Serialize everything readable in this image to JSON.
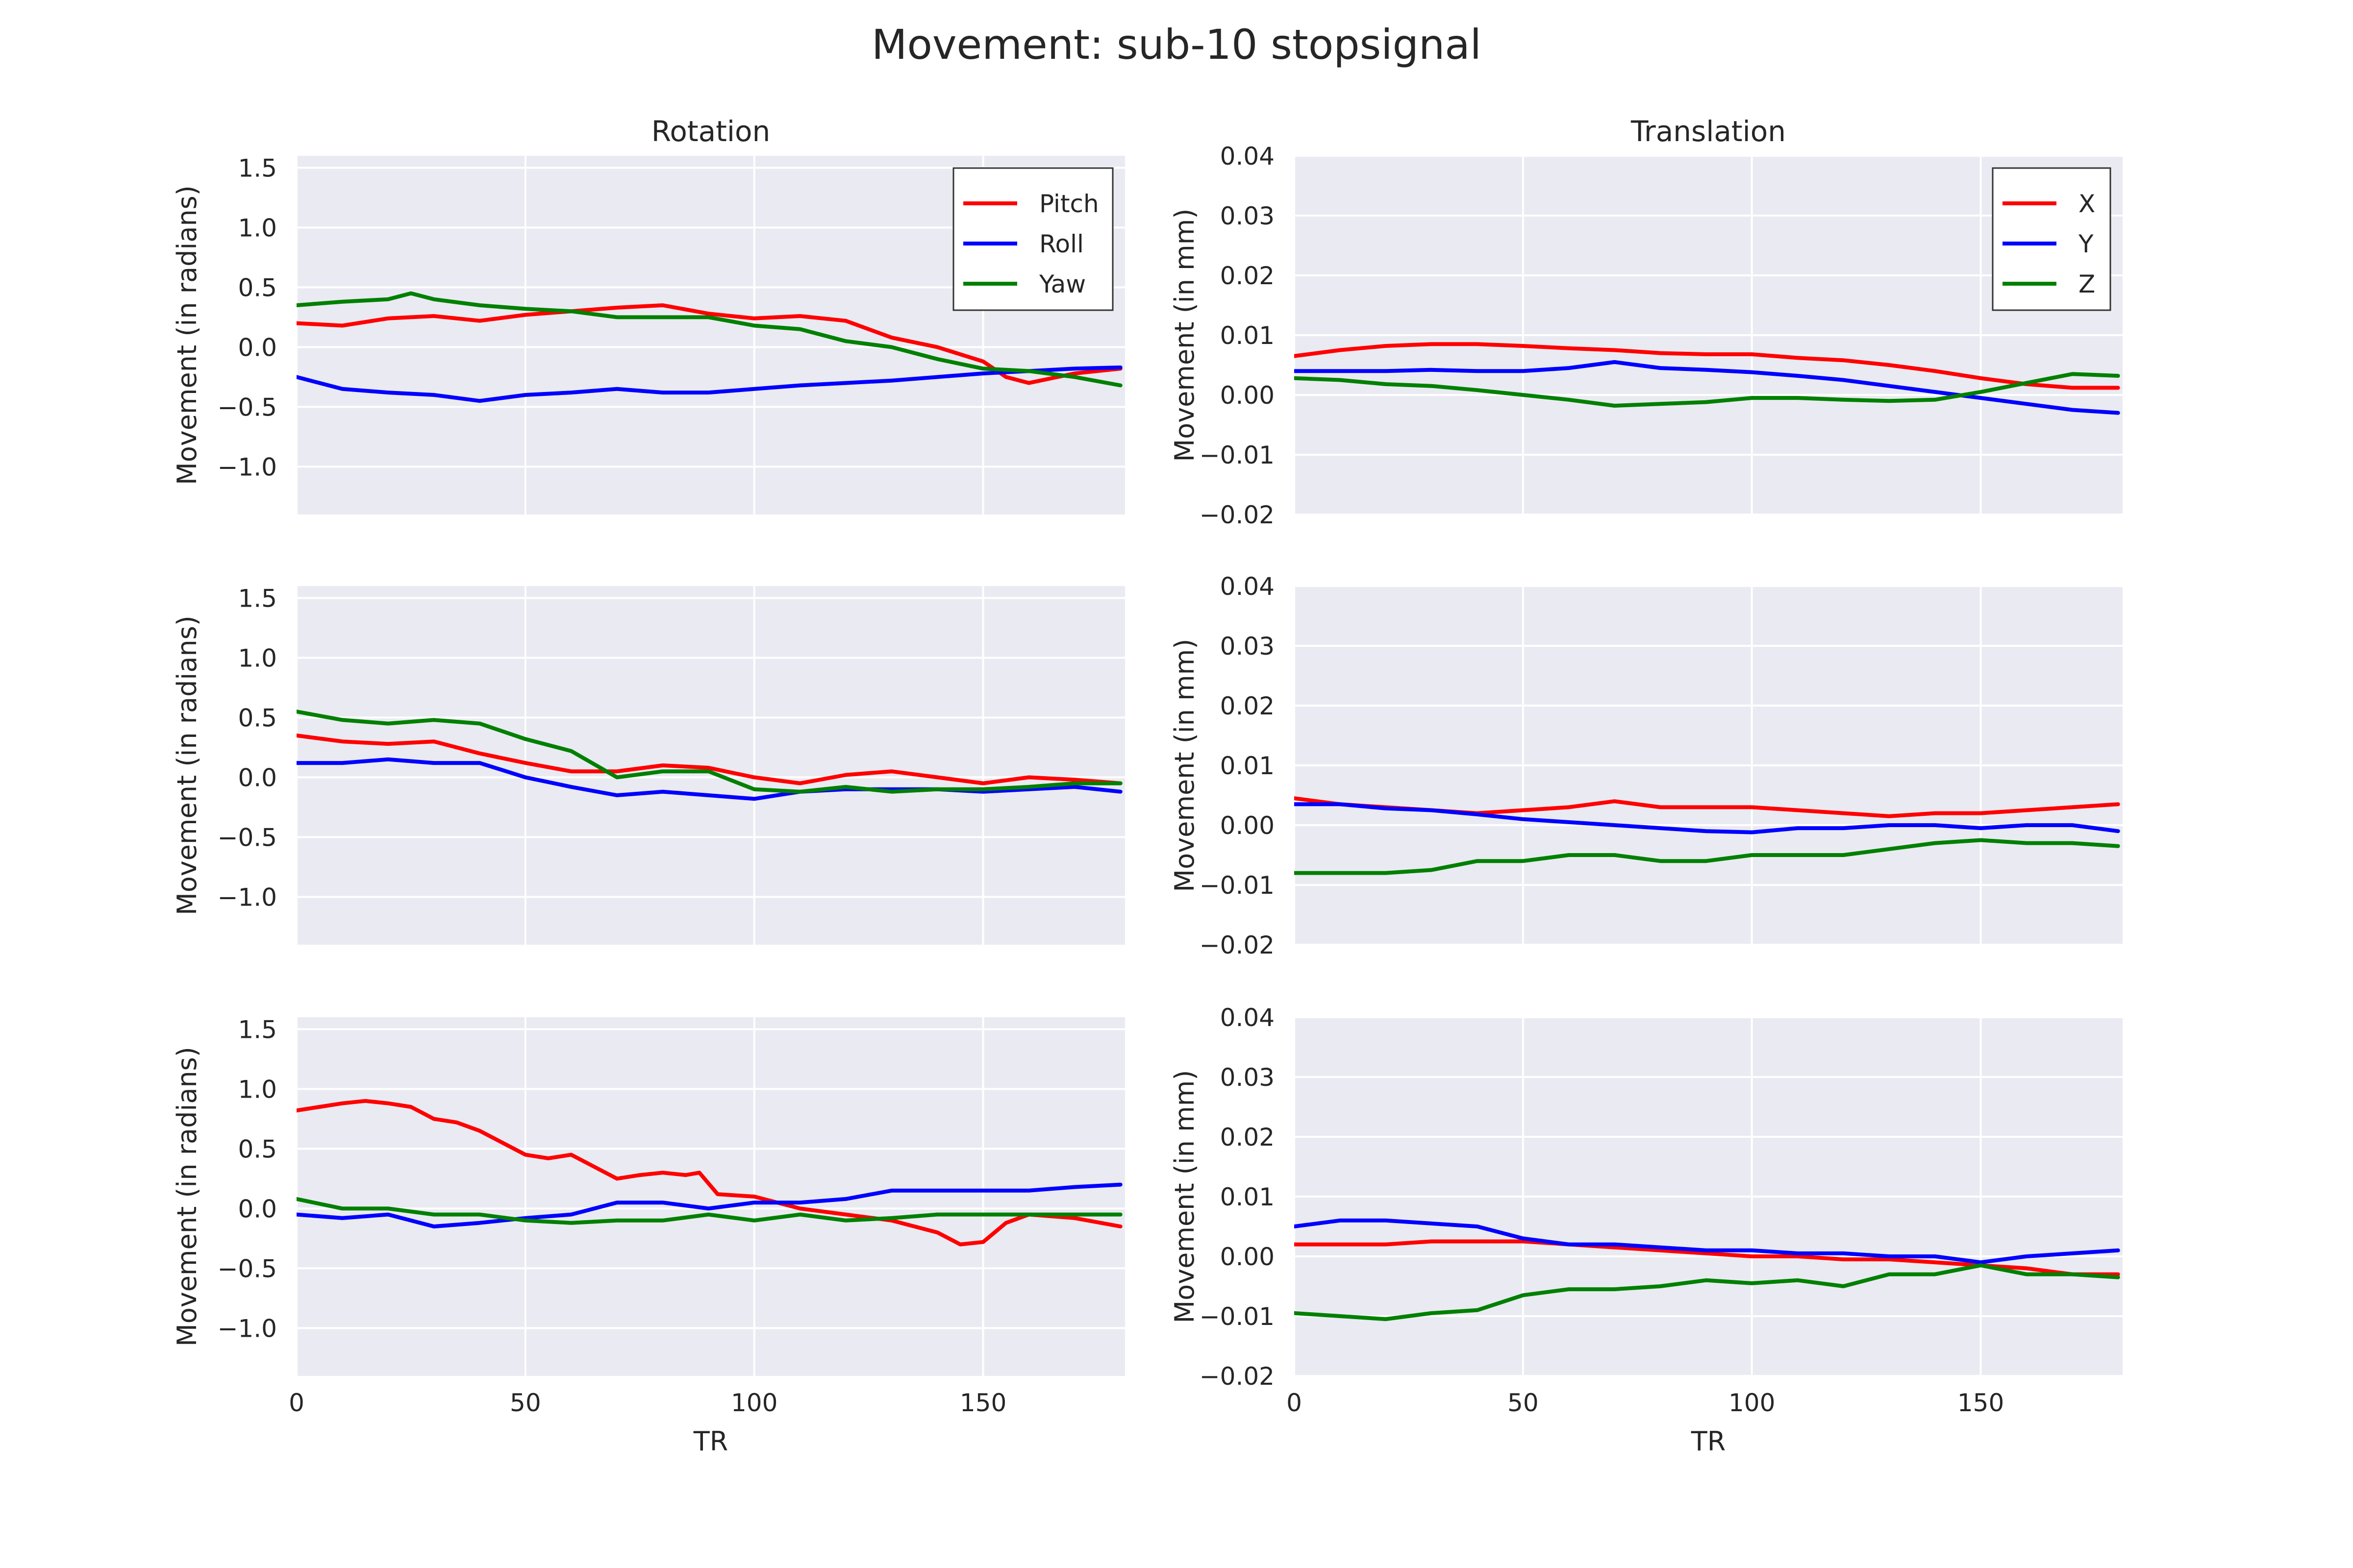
{
  "figure": {
    "title": "Movement: sub-10 stopsignal",
    "xlabel": "TR"
  },
  "colors": {
    "background": "#EAEAF2",
    "grid": "#FFFFFF",
    "red": "#FF0000",
    "blue": "#0000FF",
    "green": "#008000"
  },
  "chart_data": [
    {
      "type": "line",
      "row": 1,
      "col": 1,
      "title": "Rotation",
      "xlabel": "",
      "ylabel": "Movement (in radians)",
      "xlim": [
        0,
        181
      ],
      "ylim": [
        -1.4,
        1.6
      ],
      "xticks": [
        0,
        50,
        100,
        150
      ],
      "xticklabels": [
        "0",
        "50",
        "100",
        "150"
      ],
      "yticks": [
        -1.0,
        -0.5,
        0.0,
        0.5,
        1.0,
        1.5
      ],
      "yticklabels": [
        "−1.0",
        "−0.5",
        "0.0",
        "0.5",
        "1.0",
        "1.5"
      ],
      "grid": true,
      "legend": "top-right",
      "series": [
        {
          "name": "Pitch",
          "color": "#FF0000",
          "x": [
            0,
            10,
            20,
            30,
            40,
            50,
            60,
            70,
            80,
            90,
            100,
            110,
            120,
            130,
            140,
            150,
            155,
            160,
            170,
            180
          ],
          "y": [
            0.2,
            0.18,
            0.24,
            0.26,
            0.22,
            0.27,
            0.3,
            0.33,
            0.35,
            0.28,
            0.24,
            0.26,
            0.22,
            0.08,
            0.0,
            -0.12,
            -0.25,
            -0.3,
            -0.22,
            -0.18
          ]
        },
        {
          "name": "Roll",
          "color": "#0000FF",
          "x": [
            0,
            10,
            20,
            30,
            40,
            50,
            60,
            70,
            80,
            90,
            100,
            110,
            120,
            130,
            140,
            150,
            160,
            170,
            180
          ],
          "y": [
            -0.25,
            -0.35,
            -0.38,
            -0.4,
            -0.45,
            -0.4,
            -0.38,
            -0.35,
            -0.38,
            -0.38,
            -0.35,
            -0.32,
            -0.3,
            -0.28,
            -0.25,
            -0.22,
            -0.2,
            -0.18,
            -0.17
          ]
        },
        {
          "name": "Yaw",
          "color": "#008000",
          "x": [
            0,
            10,
            20,
            25,
            30,
            40,
            50,
            60,
            70,
            80,
            90,
            100,
            110,
            120,
            130,
            140,
            150,
            160,
            170,
            180
          ],
          "y": [
            0.35,
            0.38,
            0.4,
            0.45,
            0.4,
            0.35,
            0.32,
            0.3,
            0.25,
            0.25,
            0.25,
            0.18,
            0.15,
            0.05,
            0.0,
            -0.1,
            -0.18,
            -0.2,
            -0.25,
            -0.32
          ]
        }
      ]
    },
    {
      "type": "line",
      "row": 1,
      "col": 2,
      "title": "Translation",
      "xlabel": "",
      "ylabel": "Movement (in mm)",
      "xlim": [
        0,
        181
      ],
      "ylim": [
        -0.02,
        0.04
      ],
      "xticks": [
        0,
        50,
        100,
        150
      ],
      "xticklabels": [
        "0",
        "50",
        "100",
        "150"
      ],
      "yticks": [
        -0.02,
        -0.01,
        0.0,
        0.01,
        0.02,
        0.03,
        0.04
      ],
      "yticklabels": [
        "−0.02",
        "−0.01",
        "0.00",
        "0.01",
        "0.02",
        "0.03",
        "0.04"
      ],
      "grid": true,
      "legend": "top-right",
      "series": [
        {
          "name": "X",
          "color": "#FF0000",
          "x": [
            0,
            10,
            20,
            30,
            40,
            50,
            60,
            70,
            80,
            90,
            100,
            110,
            120,
            130,
            140,
            150,
            160,
            170,
            180
          ],
          "y": [
            0.0065,
            0.0075,
            0.0082,
            0.0085,
            0.0085,
            0.0082,
            0.0078,
            0.0075,
            0.007,
            0.0068,
            0.0068,
            0.0062,
            0.0058,
            0.005,
            0.004,
            0.0028,
            0.0018,
            0.0012,
            0.0012
          ]
        },
        {
          "name": "Y",
          "color": "#0000FF",
          "x": [
            0,
            10,
            20,
            30,
            40,
            50,
            60,
            70,
            80,
            90,
            100,
            110,
            120,
            130,
            140,
            150,
            160,
            170,
            180
          ],
          "y": [
            0.004,
            0.004,
            0.004,
            0.0042,
            0.004,
            0.004,
            0.0045,
            0.0055,
            0.0045,
            0.0042,
            0.0038,
            0.0032,
            0.0025,
            0.0015,
            0.0005,
            -0.0005,
            -0.0015,
            -0.0025,
            -0.003
          ]
        },
        {
          "name": "Z",
          "color": "#008000",
          "x": [
            0,
            10,
            20,
            30,
            40,
            50,
            60,
            70,
            80,
            90,
            100,
            110,
            120,
            130,
            140,
            150,
            160,
            170,
            180
          ],
          "y": [
            0.0028,
            0.0025,
            0.0018,
            0.0015,
            0.0008,
            0.0,
            -0.0008,
            -0.0018,
            -0.0015,
            -0.0012,
            -0.0005,
            -0.0005,
            -0.0008,
            -0.001,
            -0.0008,
            0.0005,
            0.002,
            0.0035,
            0.0032
          ]
        }
      ]
    },
    {
      "type": "line",
      "row": 2,
      "col": 1,
      "title": "",
      "xlabel": "",
      "ylabel": "Movement (in radians)",
      "xlim": [
        0,
        181
      ],
      "ylim": [
        -1.4,
        1.6
      ],
      "xticks": [
        0,
        50,
        100,
        150
      ],
      "xticklabels": [
        "0",
        "50",
        "100",
        "150"
      ],
      "yticks": [
        -1.0,
        -0.5,
        0.0,
        0.5,
        1.0,
        1.5
      ],
      "yticklabels": [
        "−1.0",
        "−0.5",
        "0.0",
        "0.5",
        "1.0",
        "1.5"
      ],
      "grid": true,
      "legend": "none",
      "series": [
        {
          "name": "Pitch",
          "color": "#FF0000",
          "x": [
            0,
            10,
            20,
            30,
            40,
            50,
            60,
            70,
            80,
            90,
            100,
            110,
            120,
            130,
            140,
            150,
            160,
            170,
            180
          ],
          "y": [
            0.35,
            0.3,
            0.28,
            0.3,
            0.2,
            0.12,
            0.05,
            0.05,
            0.1,
            0.08,
            0.0,
            -0.05,
            0.02,
            0.05,
            0.0,
            -0.05,
            0.0,
            -0.02,
            -0.05
          ]
        },
        {
          "name": "Roll",
          "color": "#0000FF",
          "x": [
            0,
            10,
            20,
            30,
            40,
            50,
            60,
            70,
            80,
            90,
            100,
            110,
            120,
            130,
            140,
            150,
            160,
            170,
            180
          ],
          "y": [
            0.12,
            0.12,
            0.15,
            0.12,
            0.12,
            0.0,
            -0.08,
            -0.15,
            -0.12,
            -0.15,
            -0.18,
            -0.12,
            -0.1,
            -0.1,
            -0.1,
            -0.12,
            -0.1,
            -0.08,
            -0.12
          ]
        },
        {
          "name": "Yaw",
          "color": "#008000",
          "x": [
            0,
            10,
            20,
            30,
            40,
            50,
            60,
            70,
            80,
            90,
            100,
            110,
            120,
            130,
            140,
            150,
            160,
            170,
            180
          ],
          "y": [
            0.55,
            0.48,
            0.45,
            0.48,
            0.45,
            0.32,
            0.22,
            0.0,
            0.05,
            0.05,
            -0.1,
            -0.12,
            -0.08,
            -0.12,
            -0.1,
            -0.1,
            -0.08,
            -0.05,
            -0.05
          ]
        }
      ]
    },
    {
      "type": "line",
      "row": 2,
      "col": 2,
      "title": "",
      "xlabel": "",
      "ylabel": "Movement (in mm)",
      "xlim": [
        0,
        181
      ],
      "ylim": [
        -0.02,
        0.04
      ],
      "xticks": [
        0,
        50,
        100,
        150
      ],
      "xticklabels": [
        "0",
        "50",
        "100",
        "150"
      ],
      "yticks": [
        -0.02,
        -0.01,
        0.0,
        0.01,
        0.02,
        0.03,
        0.04
      ],
      "yticklabels": [
        "−0.02",
        "−0.01",
        "0.00",
        "0.01",
        "0.02",
        "0.03",
        "0.04"
      ],
      "grid": true,
      "legend": "none",
      "series": [
        {
          "name": "X",
          "color": "#FF0000",
          "x": [
            0,
            10,
            20,
            30,
            40,
            50,
            60,
            70,
            80,
            90,
            100,
            110,
            120,
            130,
            140,
            150,
            160,
            170,
            180
          ],
          "y": [
            0.0045,
            0.0035,
            0.003,
            0.0025,
            0.002,
            0.0025,
            0.003,
            0.004,
            0.003,
            0.003,
            0.003,
            0.0025,
            0.002,
            0.0015,
            0.002,
            0.002,
            0.0025,
            0.003,
            0.0035
          ]
        },
        {
          "name": "Y",
          "color": "#0000FF",
          "x": [
            0,
            10,
            20,
            30,
            40,
            50,
            60,
            70,
            80,
            90,
            100,
            110,
            120,
            130,
            140,
            150,
            160,
            170,
            180
          ],
          "y": [
            0.0035,
            0.0035,
            0.0028,
            0.0025,
            0.0018,
            0.001,
            0.0005,
            0.0,
            -0.0005,
            -0.001,
            -0.0012,
            -0.0005,
            -0.0005,
            0.0,
            0.0,
            -0.0005,
            0.0,
            0.0,
            -0.001
          ]
        },
        {
          "name": "Z",
          "color": "#008000",
          "x": [
            0,
            10,
            20,
            30,
            40,
            50,
            60,
            70,
            80,
            90,
            100,
            110,
            120,
            130,
            140,
            150,
            160,
            170,
            180
          ],
          "y": [
            -0.008,
            -0.008,
            -0.008,
            -0.0075,
            -0.006,
            -0.006,
            -0.005,
            -0.005,
            -0.006,
            -0.006,
            -0.005,
            -0.005,
            -0.005,
            -0.004,
            -0.003,
            -0.0025,
            -0.003,
            -0.003,
            -0.0035
          ]
        }
      ]
    },
    {
      "type": "line",
      "row": 3,
      "col": 1,
      "title": "",
      "xlabel": "TR",
      "ylabel": "Movement (in radians)",
      "xlim": [
        0,
        181
      ],
      "ylim": [
        -1.4,
        1.6
      ],
      "xticks": [
        0,
        50,
        100,
        150
      ],
      "xticklabels": [
        "0",
        "50",
        "100",
        "150"
      ],
      "yticks": [
        -1.0,
        -0.5,
        0.0,
        0.5,
        1.0,
        1.5
      ],
      "yticklabels": [
        "−1.0",
        "−0.5",
        "0.0",
        "0.5",
        "1.0",
        "1.5"
      ],
      "grid": true,
      "legend": "none",
      "series": [
        {
          "name": "Pitch",
          "color": "#FF0000",
          "x": [
            0,
            5,
            10,
            15,
            20,
            25,
            30,
            35,
            40,
            45,
            50,
            55,
            60,
            65,
            70,
            75,
            80,
            85,
            88,
            92,
            100,
            110,
            120,
            130,
            140,
            145,
            150,
            155,
            160,
            170,
            180
          ],
          "y": [
            0.82,
            0.85,
            0.88,
            0.9,
            0.88,
            0.85,
            0.75,
            0.72,
            0.65,
            0.55,
            0.45,
            0.42,
            0.45,
            0.35,
            0.25,
            0.28,
            0.3,
            0.28,
            0.3,
            0.12,
            0.1,
            0.0,
            -0.05,
            -0.1,
            -0.2,
            -0.3,
            -0.28,
            -0.12,
            -0.05,
            -0.08,
            -0.15
          ]
        },
        {
          "name": "Roll",
          "color": "#0000FF",
          "x": [
            0,
            10,
            20,
            30,
            40,
            50,
            60,
            70,
            80,
            90,
            100,
            110,
            120,
            130,
            140,
            150,
            160,
            170,
            180
          ],
          "y": [
            -0.05,
            -0.08,
            -0.05,
            -0.15,
            -0.12,
            -0.08,
            -0.05,
            0.05,
            0.05,
            0.0,
            0.05,
            0.05,
            0.08,
            0.15,
            0.15,
            0.15,
            0.15,
            0.18,
            0.2
          ]
        },
        {
          "name": "Yaw",
          "color": "#008000",
          "x": [
            0,
            10,
            20,
            30,
            40,
            50,
            60,
            70,
            80,
            90,
            100,
            110,
            120,
            130,
            140,
            150,
            160,
            170,
            180
          ],
          "y": [
            0.08,
            0.0,
            0.0,
            -0.05,
            -0.05,
            -0.1,
            -0.12,
            -0.1,
            -0.1,
            -0.05,
            -0.1,
            -0.05,
            -0.1,
            -0.08,
            -0.05,
            -0.05,
            -0.05,
            -0.05,
            -0.05
          ]
        }
      ]
    },
    {
      "type": "line",
      "row": 3,
      "col": 2,
      "title": "",
      "xlabel": "TR",
      "ylabel": "Movement (in mm)",
      "xlim": [
        0,
        181
      ],
      "ylim": [
        -0.02,
        0.04
      ],
      "xticks": [
        0,
        50,
        100,
        150
      ],
      "xticklabels": [
        "0",
        "50",
        "100",
        "150"
      ],
      "yticks": [
        -0.02,
        -0.01,
        0.0,
        0.01,
        0.02,
        0.03,
        0.04
      ],
      "yticklabels": [
        "−0.02",
        "−0.01",
        "0.00",
        "0.01",
        "0.02",
        "0.03",
        "0.04"
      ],
      "grid": true,
      "legend": "none",
      "series": [
        {
          "name": "X",
          "color": "#FF0000",
          "x": [
            0,
            10,
            20,
            30,
            40,
            50,
            60,
            70,
            80,
            90,
            100,
            110,
            120,
            130,
            140,
            150,
            160,
            170,
            180
          ],
          "y": [
            0.002,
            0.002,
            0.002,
            0.0025,
            0.0025,
            0.0025,
            0.002,
            0.0015,
            0.001,
            0.0005,
            0.0,
            0.0,
            -0.0005,
            -0.0005,
            -0.001,
            -0.0015,
            -0.002,
            -0.003,
            -0.003
          ]
        },
        {
          "name": "Y",
          "color": "#0000FF",
          "x": [
            0,
            10,
            20,
            30,
            40,
            50,
            60,
            70,
            80,
            90,
            100,
            110,
            120,
            130,
            140,
            150,
            160,
            170,
            180
          ],
          "y": [
            0.005,
            0.006,
            0.006,
            0.0055,
            0.005,
            0.003,
            0.002,
            0.002,
            0.0015,
            0.001,
            0.001,
            0.0005,
            0.0005,
            0.0,
            0.0,
            -0.001,
            0.0,
            0.0005,
            0.001
          ]
        },
        {
          "name": "Z",
          "color": "#008000",
          "x": [
            0,
            10,
            20,
            30,
            40,
            50,
            60,
            70,
            80,
            90,
            100,
            110,
            120,
            130,
            140,
            150,
            160,
            170,
            180
          ],
          "y": [
            -0.0095,
            -0.01,
            -0.0105,
            -0.0095,
            -0.009,
            -0.0065,
            -0.0055,
            -0.0055,
            -0.005,
            -0.004,
            -0.0045,
            -0.004,
            -0.005,
            -0.003,
            -0.003,
            -0.0015,
            -0.003,
            -0.003,
            -0.0035
          ]
        }
      ]
    }
  ]
}
